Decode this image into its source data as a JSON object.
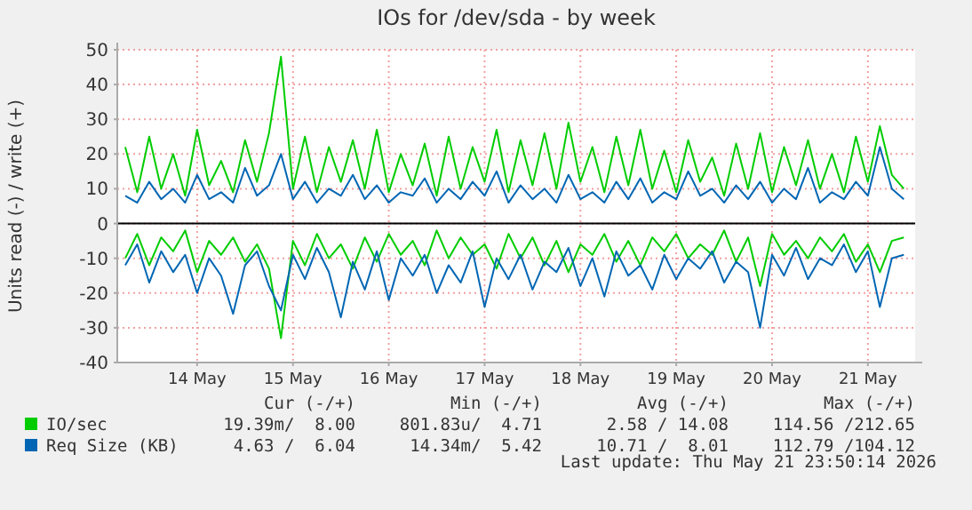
{
  "chart_data": {
    "type": "line",
    "title": "IOs for /dev/sda - by week",
    "ylabel": "Units read (-) / write (+)",
    "x": [
      "2026-05-13T18:00",
      "2026-05-13T21:00",
      "2026-05-14T00:00",
      "2026-05-14T03:00",
      "2026-05-14T06:00",
      "2026-05-14T09:00",
      "2026-05-14T12:00",
      "2026-05-14T15:00",
      "2026-05-14T18:00",
      "2026-05-14T21:00",
      "2026-05-15T00:00",
      "2026-05-15T03:00",
      "2026-05-15T06:00",
      "2026-05-15T09:00",
      "2026-05-15T12:00",
      "2026-05-15T15:00",
      "2026-05-15T18:00",
      "2026-05-15T21:00",
      "2026-05-16T00:00",
      "2026-05-16T03:00",
      "2026-05-16T06:00",
      "2026-05-16T09:00",
      "2026-05-16T12:00",
      "2026-05-16T15:00",
      "2026-05-16T18:00",
      "2026-05-16T21:00",
      "2026-05-17T00:00",
      "2026-05-17T03:00",
      "2026-05-17T06:00",
      "2026-05-17T09:00",
      "2026-05-17T12:00",
      "2026-05-17T15:00",
      "2026-05-17T18:00",
      "2026-05-17T21:00",
      "2026-05-18T00:00",
      "2026-05-18T03:00",
      "2026-05-18T06:00",
      "2026-05-18T09:00",
      "2026-05-18T12:00",
      "2026-05-18T15:00",
      "2026-05-18T18:00",
      "2026-05-18T21:00",
      "2026-05-19T00:00",
      "2026-05-19T03:00",
      "2026-05-19T06:00",
      "2026-05-19T09:00",
      "2026-05-19T12:00",
      "2026-05-19T15:00",
      "2026-05-19T18:00",
      "2026-05-19T21:00",
      "2026-05-20T00:00",
      "2026-05-20T03:00",
      "2026-05-20T06:00",
      "2026-05-20T09:00",
      "2026-05-20T12:00",
      "2026-05-20T15:00",
      "2026-05-20T18:00",
      "2026-05-20T21:00",
      "2026-05-21T00:00",
      "2026-05-21T03:00",
      "2026-05-21T06:00",
      "2026-05-21T09:00",
      "2026-05-21T12:00",
      "2026-05-21T15:00",
      "2026-05-21T18:00",
      "2026-05-21T21:00"
    ],
    "series": [
      {
        "name": "IO/sec",
        "color": "#00cc00",
        "values": [
          22,
          9,
          25,
          10,
          20,
          8,
          27,
          11,
          18,
          9,
          24,
          12,
          26,
          48,
          10,
          25,
          9,
          22,
          12,
          24,
          10,
          27,
          9,
          20,
          11,
          23,
          8,
          25,
          10,
          22,
          12,
          27,
          9,
          24,
          11,
          26,
          10,
          29,
          12,
          22,
          9,
          25,
          11,
          27,
          10,
          21,
          9,
          24,
          12,
          19,
          8,
          23,
          10,
          26,
          9,
          22,
          11,
          24,
          10,
          20,
          9,
          25,
          12,
          28,
          14,
          10
        ]
      },
      {
        "color": "#00cc00",
        "values": [
          -10,
          -3,
          -12,
          -4,
          -8,
          -2,
          -14,
          -5,
          -9,
          -4,
          -11,
          -6,
          -13,
          -33,
          -5,
          -12,
          -3,
          -10,
          -6,
          -13,
          -4,
          -11,
          -3,
          -9,
          -5,
          -12,
          -2,
          -10,
          -4,
          -9,
          -6,
          -13,
          -3,
          -10,
          -4,
          -12,
          -5,
          -14,
          -6,
          -9,
          -3,
          -11,
          -5,
          -12,
          -4,
          -8,
          -3,
          -10,
          -6,
          -9,
          -2,
          -11,
          -4,
          -18,
          -3,
          -9,
          -5,
          -10,
          -4,
          -8,
          -3,
          -11,
          -6,
          -14,
          -5,
          -4
        ]
      },
      {
        "name": "Req Size (KB)",
        "color": "#0066b3",
        "values": [
          8,
          6,
          12,
          7,
          10,
          6,
          14,
          7,
          9,
          6,
          16,
          8,
          11,
          20,
          7,
          12,
          6,
          10,
          8,
          14,
          7,
          11,
          6,
          9,
          8,
          13,
          6,
          10,
          7,
          12,
          8,
          15,
          6,
          11,
          7,
          10,
          6,
          14,
          7,
          9,
          6,
          12,
          7,
          13,
          6,
          9,
          7,
          15,
          8,
          10,
          6,
          11,
          7,
          12,
          6,
          10,
          7,
          16,
          6,
          9,
          7,
          12,
          8,
          22,
          10,
          7
        ]
      },
      {
        "color": "#0066b3",
        "values": [
          -12,
          -6,
          -17,
          -8,
          -14,
          -9,
          -20,
          -10,
          -15,
          -26,
          -12,
          -8,
          -18,
          -25,
          -9,
          -16,
          -7,
          -14,
          -27,
          -11,
          -19,
          -8,
          -22,
          -10,
          -15,
          -9,
          -20,
          -12,
          -17,
          -8,
          -24,
          -10,
          -16,
          -9,
          -19,
          -11,
          -14,
          -7,
          -18,
          -10,
          -21,
          -8,
          -15,
          -12,
          -19,
          -9,
          -16,
          -10,
          -13,
          -8,
          -17,
          -11,
          -14,
          -30,
          -9,
          -15,
          -7,
          -16,
          -10,
          -12,
          -6,
          -14,
          -8,
          -24,
          -10,
          -9
        ]
      }
    ],
    "xlim": [
      "2026-05-13T16:00",
      "2026-05-21T23:50"
    ],
    "xticks": [
      {
        "value": "2026-05-14T12:00",
        "label": "14 May"
      },
      {
        "value": "2026-05-15T12:00",
        "label": "15 May"
      },
      {
        "value": "2026-05-16T12:00",
        "label": "16 May"
      },
      {
        "value": "2026-05-17T12:00",
        "label": "17 May"
      },
      {
        "value": "2026-05-18T12:00",
        "label": "18 May"
      },
      {
        "value": "2026-05-19T12:00",
        "label": "19 May"
      },
      {
        "value": "2026-05-20T12:00",
        "label": "20 May"
      },
      {
        "value": "2026-05-21T12:00",
        "label": "21 May"
      }
    ],
    "ylim": [
      -40,
      50
    ],
    "yticks": [
      -40,
      -30,
      -20,
      -10,
      0,
      10,
      20,
      30,
      40,
      50
    ],
    "grid": true,
    "legend": "bottom left",
    "line_style": "solid",
    "annotations": [
      "Cur (-/+)",
      "Min (-/+)",
      "Avg (-/+)",
      "Max (-/+)",
      "19.39m/  8.00",
      "801.83u/  4.71",
      "2.58 / 14.08",
      "114.56 /212.65",
      "4.63 /  6.04",
      "14.34m/  5.42",
      "10.71 /  8.01",
      "112.79 /104.12",
      "Last update: Thu May 21 23:50:14 2026"
    ]
  }
}
